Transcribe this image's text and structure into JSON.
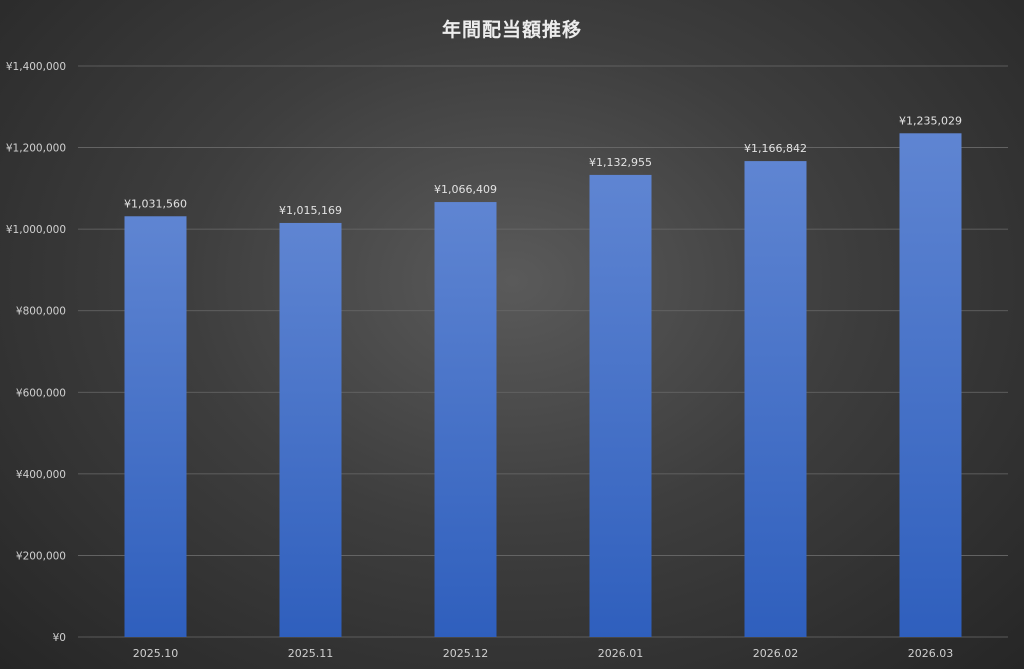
{
  "chart_data": {
    "type": "bar",
    "title": "年間配当額推移",
    "xlabel": "",
    "ylabel": "",
    "categories": [
      "2025.10",
      "2025.11",
      "2025.12",
      "2026.01",
      "2026.02",
      "2026.03"
    ],
    "values": [
      1031560,
      1015169,
      1066409,
      1132955,
      1166842,
      1235029
    ],
    "data_labels": [
      "¥1,031,560",
      "¥1,015,169",
      "¥1,066,409",
      "¥1,132,955",
      "¥1,166,842",
      "¥1,235,029"
    ],
    "ylim": [
      0,
      1400000
    ],
    "yticks": [
      0,
      200000,
      400000,
      600000,
      800000,
      1000000,
      1200000,
      1400000
    ],
    "ytick_labels": [
      "¥0",
      "¥200,000",
      "¥400,000",
      "¥600,000",
      "¥800,000",
      "¥1,000,000",
      "¥1,200,000",
      "¥1,400,000"
    ],
    "grid": true,
    "legend": "none",
    "colors": {
      "bar_top": "#5f85d2",
      "bar_bottom": "#2f5fbd",
      "background": "#3e3e3e",
      "grid": "#6a6a6a",
      "text": "#d0d0d0"
    }
  }
}
